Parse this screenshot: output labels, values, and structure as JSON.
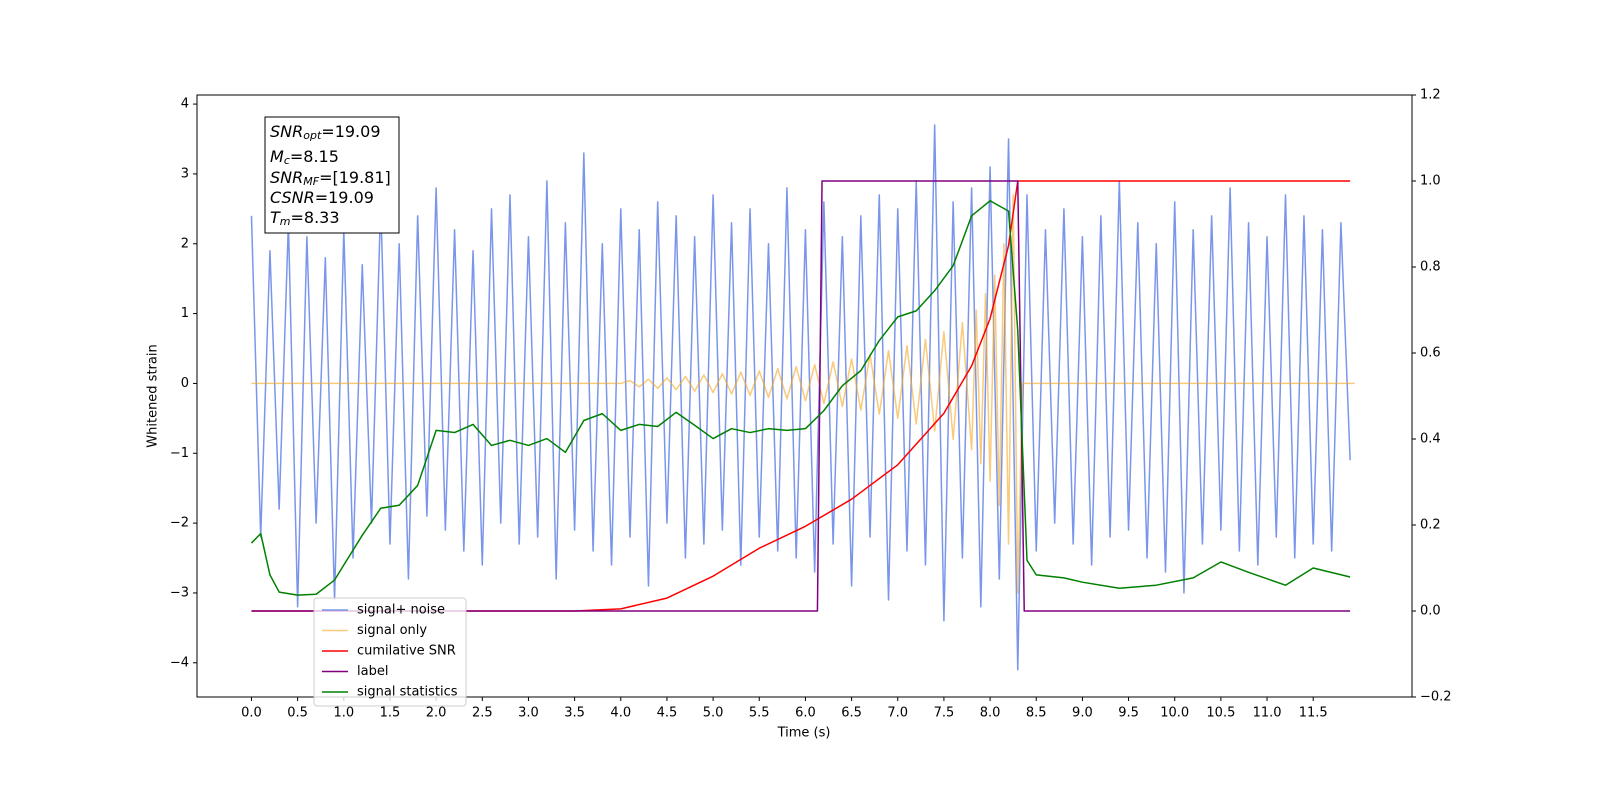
{
  "chart_data": {
    "type": "line",
    "xlabel": "Time (s)",
    "ylabel": "Whitened strain",
    "xlim": [
      -0.59,
      12.57
    ],
    "ylim": [
      -4.49,
      4.13
    ],
    "y2lim": [
      -0.2,
      1.2
    ],
    "xticks": [
      {
        "value": 0,
        "label": "0.0"
      },
      0.5,
      {
        "value": 1,
        "label": "1.0"
      },
      1.5,
      {
        "value": 2,
        "label": "2.0"
      },
      2.5,
      {
        "value": 3,
        "label": "3.0"
      },
      3.5,
      {
        "value": 4,
        "label": "4.0"
      },
      4.5,
      {
        "value": 5,
        "label": "5.0"
      },
      5.5,
      {
        "value": 6,
        "label": "6.0"
      },
      6.5,
      {
        "value": 7,
        "label": "7.0"
      },
      7.5,
      {
        "value": 8,
        "label": "8.0"
      },
      8.5,
      {
        "value": 9,
        "label": "9.0"
      },
      9.5,
      {
        "value": 10,
        "label": "10.0"
      },
      10.5,
      {
        "value": 11,
        "label": "11.0"
      },
      11.5
    ],
    "yticks": [
      {
        "value": -4,
        "label": "−4"
      },
      {
        "value": -3,
        "label": "−3"
      },
      {
        "value": -2,
        "label": "−2"
      },
      {
        "value": -1,
        "label": "−1"
      },
      0,
      1,
      2,
      3,
      4
    ],
    "y2ticks": [
      {
        "value": -0.2,
        "label": "−0.2"
      },
      {
        "value": 0,
        "label": "0.0"
      },
      0.2,
      0.4,
      0.6,
      0.8,
      {
        "value": 1,
        "label": "1.0"
      },
      1.2
    ],
    "annotations": [
      {
        "symbol": "SNR",
        "subscript": "opt",
        "text": "=19.09"
      },
      {
        "symbol": "M",
        "subscript": "c",
        "text": "=8.15"
      },
      {
        "symbol": "SNR",
        "subscript": "MF",
        "text": "=[19.81]"
      },
      {
        "symbol": "CSNR",
        "text": "=19.09"
      },
      {
        "symbol": "T",
        "subscript": "m",
        "text": "=8.33"
      }
    ],
    "series": [
      {
        "name": "signal+ noise",
        "color": "#4169e1",
        "opacity": 0.7,
        "x": [
          0.0,
          0.1,
          0.2,
          0.3,
          0.4,
          0.5,
          0.6,
          0.7,
          0.8,
          0.9,
          1.0,
          1.1,
          1.2,
          1.3,
          1.4,
          1.5,
          1.6,
          1.7,
          1.8,
          1.9,
          2.0,
          2.1,
          2.2,
          2.3,
          2.4,
          2.5,
          2.6,
          2.7,
          2.8,
          2.9,
          3.0,
          3.1,
          3.2,
          3.3,
          3.4,
          3.5,
          3.6,
          3.7,
          3.8,
          3.9,
          4.0,
          4.1,
          4.2,
          4.3,
          4.4,
          4.5,
          4.6,
          4.7,
          4.8,
          4.9,
          5.0,
          5.1,
          5.2,
          5.3,
          5.4,
          5.5,
          5.6,
          5.7,
          5.8,
          5.9,
          6.0,
          6.1,
          6.2,
          6.3,
          6.4,
          6.5,
          6.6,
          6.7,
          6.8,
          6.9,
          7.0,
          7.1,
          7.2,
          7.3,
          7.4,
          7.5,
          7.6,
          7.7,
          7.8,
          7.9,
          8.0,
          8.1,
          8.2,
          8.3,
          8.4,
          8.5,
          8.6,
          8.7,
          8.8,
          8.9,
          9.0,
          9.1,
          9.2,
          9.3,
          9.4,
          9.5,
          9.6,
          9.7,
          9.8,
          9.9,
          10.0,
          10.1,
          10.2,
          10.3,
          10.4,
          10.5,
          10.6,
          10.7,
          10.8,
          10.9,
          11.0,
          11.1,
          11.2,
          11.3,
          11.4,
          11.5,
          11.6,
          11.7,
          11.8,
          11.9
        ],
        "values": [
          2.4,
          -2.2,
          1.9,
          -1.8,
          2.3,
          -3.2,
          2.1,
          -2.0,
          1.8,
          -3.1,
          2.2,
          -2.5,
          1.7,
          -2.0,
          2.6,
          -2.3,
          2.0,
          -2.8,
          2.4,
          -1.9,
          2.8,
          -2.1,
          2.2,
          -2.4,
          1.9,
          -2.6,
          2.5,
          -2.0,
          2.7,
          -2.3,
          2.1,
          -2.2,
          2.9,
          -2.8,
          2.3,
          -2.1,
          3.3,
          -2.4,
          2.0,
          -2.6,
          2.5,
          -2.2,
          2.2,
          -2.9,
          2.6,
          -2.0,
          2.4,
          -2.5,
          2.1,
          -2.3,
          2.7,
          -2.1,
          2.3,
          -2.6,
          2.5,
          -2.2,
          2.0,
          -2.4,
          2.8,
          -2.5,
          2.2,
          -2.7,
          2.6,
          -2.3,
          2.1,
          -2.9,
          2.4,
          -2.2,
          2.7,
          -3.1,
          2.5,
          -2.4,
          2.9,
          -2.6,
          3.7,
          -3.4,
          2.6,
          -2.5,
          2.8,
          -3.2,
          3.1,
          -2.8,
          3.5,
          -4.1,
          2.7,
          -2.4,
          2.2,
          -2.0,
          2.5,
          -2.3,
          2.1,
          -2.6,
          2.4,
          -2.2,
          2.9,
          -2.1,
          2.3,
          -2.5,
          2.0,
          -2.7,
          2.6,
          -3.0,
          2.2,
          -2.3,
          2.4,
          -2.1,
          2.8,
          -2.4,
          2.3,
          -2.6,
          2.1,
          -2.2,
          2.7,
          -2.5,
          2.4,
          -2.3,
          2.2,
          -2.4,
          2.3,
          -1.1
        ]
      },
      {
        "name": "signal only",
        "color": "#f5a623",
        "opacity": 0.6,
        "x": [
          0.0,
          4.0,
          4.1,
          4.2,
          4.3,
          4.4,
          4.5,
          4.6,
          4.7,
          4.8,
          4.9,
          5.0,
          5.1,
          5.2,
          5.3,
          5.4,
          5.5,
          5.6,
          5.7,
          5.8,
          5.9,
          6.0,
          6.1,
          6.2,
          6.3,
          6.4,
          6.5,
          6.6,
          6.7,
          6.8,
          6.9,
          7.0,
          7.1,
          7.2,
          7.3,
          7.4,
          7.5,
          7.6,
          7.7,
          7.8,
          7.85,
          7.9,
          7.95,
          8.0,
          8.05,
          8.1,
          8.15,
          8.2,
          8.25,
          8.3,
          8.35,
          11.95
        ],
        "values": [
          0,
          0,
          0.04,
          -0.05,
          0.06,
          -0.07,
          0.08,
          -0.09,
          0.1,
          -0.11,
          0.12,
          -0.13,
          0.14,
          -0.15,
          0.16,
          -0.17,
          0.18,
          -0.2,
          0.21,
          -0.22,
          0.24,
          -0.25,
          0.27,
          -0.29,
          0.31,
          -0.33,
          0.35,
          -0.38,
          0.41,
          -0.44,
          0.47,
          -0.5,
          0.54,
          -0.58,
          0.63,
          -0.68,
          0.74,
          -0.8,
          0.87,
          -0.95,
          1.05,
          -1.15,
          1.28,
          -1.4,
          1.55,
          -1.75,
          2.0,
          -2.3,
          2.7,
          -3.0,
          0,
          0
        ]
      },
      {
        "name": "cumilative SNR",
        "color": "#ff0000",
        "axis": "y2",
        "x": [
          0.0,
          3.5,
          4.0,
          4.5,
          5.0,
          5.5,
          6.0,
          6.5,
          7.0,
          7.5,
          7.8,
          8.0,
          8.2,
          8.3,
          11.9
        ],
        "values": [
          0,
          0,
          0.005,
          0.03,
          0.081,
          0.146,
          0.197,
          0.26,
          0.34,
          0.46,
          0.57,
          0.68,
          0.85,
          1.0,
          1.0
        ]
      },
      {
        "name": "label",
        "color": "#800080",
        "axis": "y2",
        "x": [
          0.0,
          6.13,
          6.18,
          8.3,
          8.37,
          11.9
        ],
        "values": [
          0,
          0,
          1,
          1,
          0,
          0
        ]
      },
      {
        "name": "signal statistics",
        "color": "#008000",
        "axis": "y2",
        "x": [
          0.0,
          0.1,
          0.2,
          0.3,
          0.5,
          0.7,
          0.9,
          1.0,
          1.2,
          1.4,
          1.6,
          1.8,
          2.0,
          2.2,
          2.4,
          2.6,
          2.8,
          3.0,
          3.2,
          3.4,
          3.6,
          3.8,
          4.0,
          4.2,
          4.4,
          4.6,
          4.8,
          5.0,
          5.2,
          5.4,
          5.6,
          5.8,
          6.0,
          6.2,
          6.4,
          6.6,
          6.8,
          7.0,
          7.2,
          7.4,
          7.6,
          7.8,
          8.0,
          8.2,
          8.3,
          8.4,
          8.5,
          8.8,
          9.0,
          9.4,
          9.8,
          10.2,
          10.5,
          10.8,
          11.2,
          11.5,
          11.9
        ],
        "values": [
          0.158,
          0.18,
          0.084,
          0.044,
          0.037,
          0.039,
          0.072,
          0.107,
          0.176,
          0.239,
          0.246,
          0.292,
          0.42,
          0.415,
          0.434,
          0.385,
          0.397,
          0.385,
          0.401,
          0.369,
          0.443,
          0.459,
          0.42,
          0.434,
          0.429,
          0.462,
          0.432,
          0.401,
          0.424,
          0.415,
          0.424,
          0.42,
          0.424,
          0.466,
          0.524,
          0.559,
          0.629,
          0.684,
          0.698,
          0.745,
          0.803,
          0.919,
          0.954,
          0.93,
          0.652,
          0.118,
          0.084,
          0.077,
          0.067,
          0.053,
          0.06,
          0.077,
          0.114,
          0.09,
          0.06,
          0.1,
          0.079
        ]
      }
    ]
  }
}
